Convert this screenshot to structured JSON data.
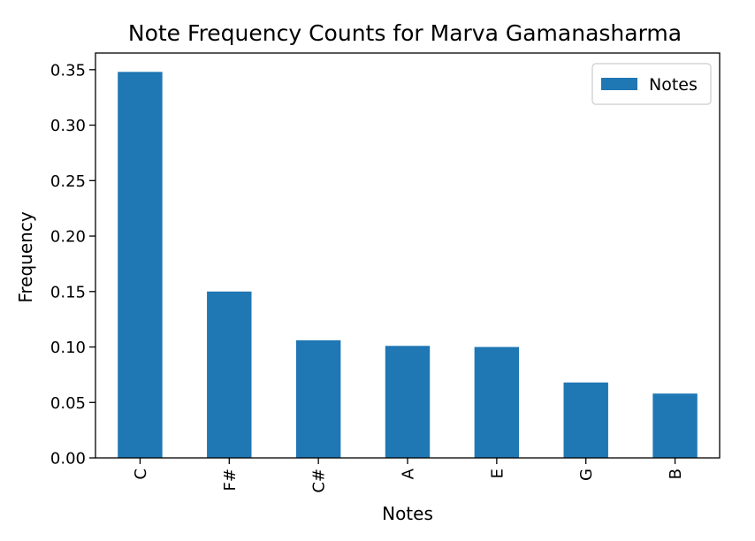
{
  "chart_data": {
    "type": "bar",
    "title": "Note Frequency Counts for Marva Gamanasharma",
    "xlabel": "Notes",
    "ylabel": "Frequency",
    "categories": [
      "C",
      "F#",
      "C#",
      "A",
      "E",
      "G",
      "B"
    ],
    "series": [
      {
        "name": "Notes",
        "values": [
          0.348,
          0.15,
          0.106,
          0.101,
          0.1,
          0.068,
          0.058
        ],
        "color": "#1f77b4"
      }
    ],
    "ylim": [
      0,
      0.365
    ],
    "yticks": [
      0.0,
      0.05,
      0.1,
      0.15,
      0.2,
      0.25,
      0.3,
      0.35
    ],
    "ytick_labels": [
      "0.00",
      "0.05",
      "0.10",
      "0.15",
      "0.20",
      "0.25",
      "0.30",
      "0.35"
    ],
    "xtick_rotation": "vertical",
    "legend": {
      "placement": "top-right",
      "entries": [
        "Notes"
      ]
    },
    "grid": false
  }
}
